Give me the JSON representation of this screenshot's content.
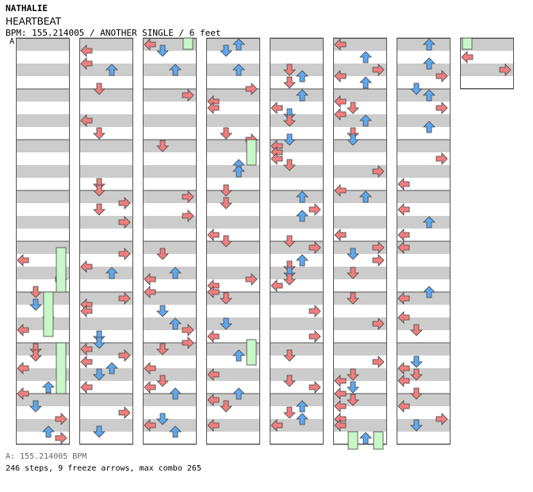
{
  "header": {
    "artist": "NATHALIE",
    "title": "HEARTBEAT",
    "meta": "BPM: 155.214005 / ANOTHER SINGLE / 6 feet"
  },
  "marker": "A",
  "footer": {
    "bpm": "A: 155.214005 BPM",
    "stats": "246 steps, 9 freeze arrows, max combo 265"
  },
  "colors": {
    "left": "#ef7f7f",
    "down": "#ef7f7f",
    "up": "#5fa8ef",
    "right": "#ef7f7f",
    "freeze": "#c8f7c8",
    "special": "#f7a8e8",
    "stripe": "#cccccc"
  }
}
